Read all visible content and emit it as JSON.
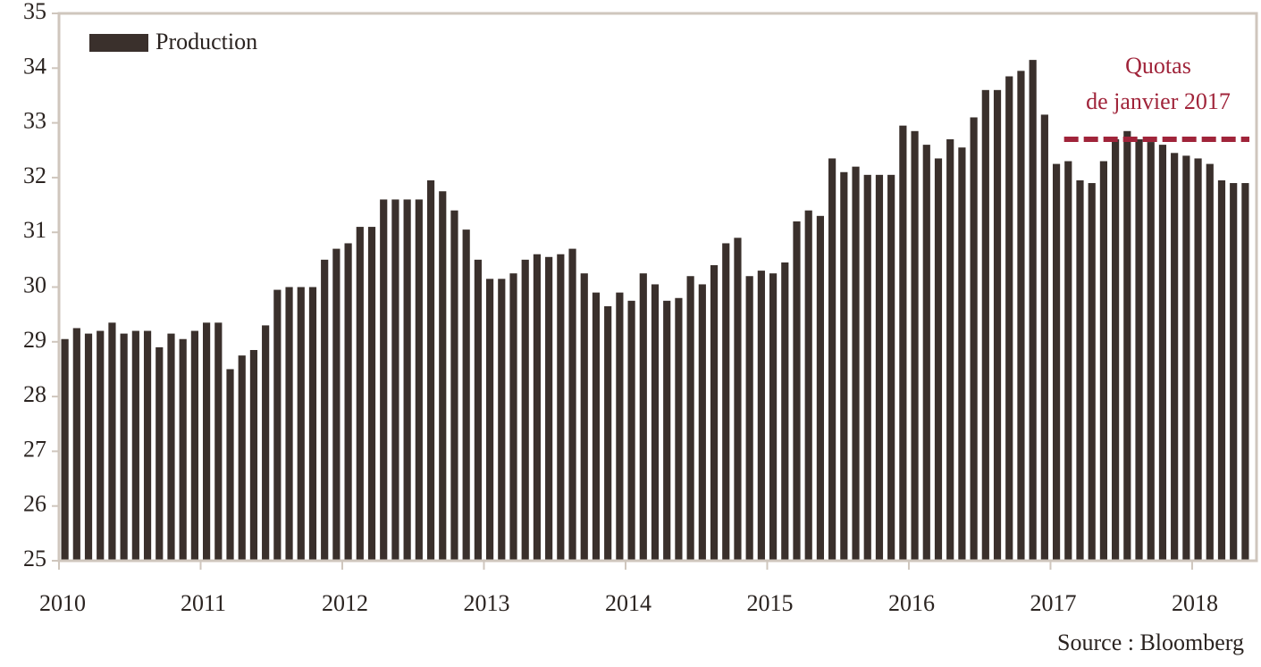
{
  "chart_data": {
    "type": "bar",
    "categories": [
      "2010",
      null,
      null,
      null,
      null,
      null,
      null,
      null,
      null,
      null,
      null,
      null,
      "2011",
      null,
      null,
      null,
      null,
      null,
      null,
      null,
      null,
      null,
      null,
      null,
      "2012",
      null,
      null,
      null,
      null,
      null,
      null,
      null,
      null,
      null,
      null,
      null,
      "2013",
      null,
      null,
      null,
      null,
      null,
      null,
      null,
      null,
      null,
      null,
      null,
      "2014",
      null,
      null,
      null,
      null,
      null,
      null,
      null,
      null,
      null,
      null,
      null,
      "2015",
      null,
      null,
      null,
      null,
      null,
      null,
      null,
      null,
      null,
      null,
      null,
      "2016",
      null,
      null,
      null,
      null,
      null,
      null,
      null,
      null,
      null,
      null,
      null,
      "2017",
      null,
      null,
      null,
      null,
      null,
      null,
      null,
      null,
      null,
      null,
      null,
      "2018",
      null,
      null,
      null,
      null
    ],
    "series": [
      {
        "name": "Production",
        "color": "#3a302c",
        "values": [
          29.05,
          29.25,
          29.15,
          29.2,
          29.35,
          29.15,
          29.2,
          29.2,
          28.9,
          29.15,
          29.05,
          29.2,
          29.35,
          29.35,
          28.5,
          28.75,
          28.85,
          29.3,
          29.95,
          30.0,
          30.0,
          30.0,
          30.5,
          30.7,
          30.8,
          31.1,
          31.1,
          31.6,
          31.6,
          31.6,
          31.6,
          31.95,
          31.75,
          31.4,
          31.05,
          30.5,
          30.15,
          30.15,
          30.25,
          30.5,
          30.6,
          30.55,
          30.6,
          30.7,
          30.25,
          29.9,
          29.65,
          29.9,
          29.75,
          30.25,
          30.05,
          29.75,
          29.8,
          30.2,
          30.05,
          30.4,
          30.8,
          30.9,
          30.2,
          30.3,
          30.25,
          30.45,
          31.2,
          31.4,
          31.3,
          32.35,
          32.1,
          32.2,
          32.05,
          32.05,
          32.05,
          32.95,
          32.85,
          32.6,
          32.35,
          32.7,
          32.55,
          33.1,
          33.6,
          33.6,
          33.85,
          33.95,
          34.15,
          33.15,
          32.25,
          32.3,
          31.95,
          31.9,
          32.3,
          32.7,
          32.85,
          32.7,
          32.65,
          32.6,
          32.45,
          32.4,
          32.35,
          32.25,
          31.95,
          31.9,
          31.9
        ]
      }
    ],
    "ylim": [
      25,
      35
    ],
    "yticks": [
      25,
      26,
      27,
      28,
      29,
      30,
      31,
      32,
      33,
      34,
      35
    ],
    "legend": "top-left",
    "reference_line": {
      "value": 32.7,
      "color": "#a0243a",
      "label": [
        "Quotas",
        "de janvier 2017"
      ]
    },
    "source": "Source : Bloomberg"
  }
}
